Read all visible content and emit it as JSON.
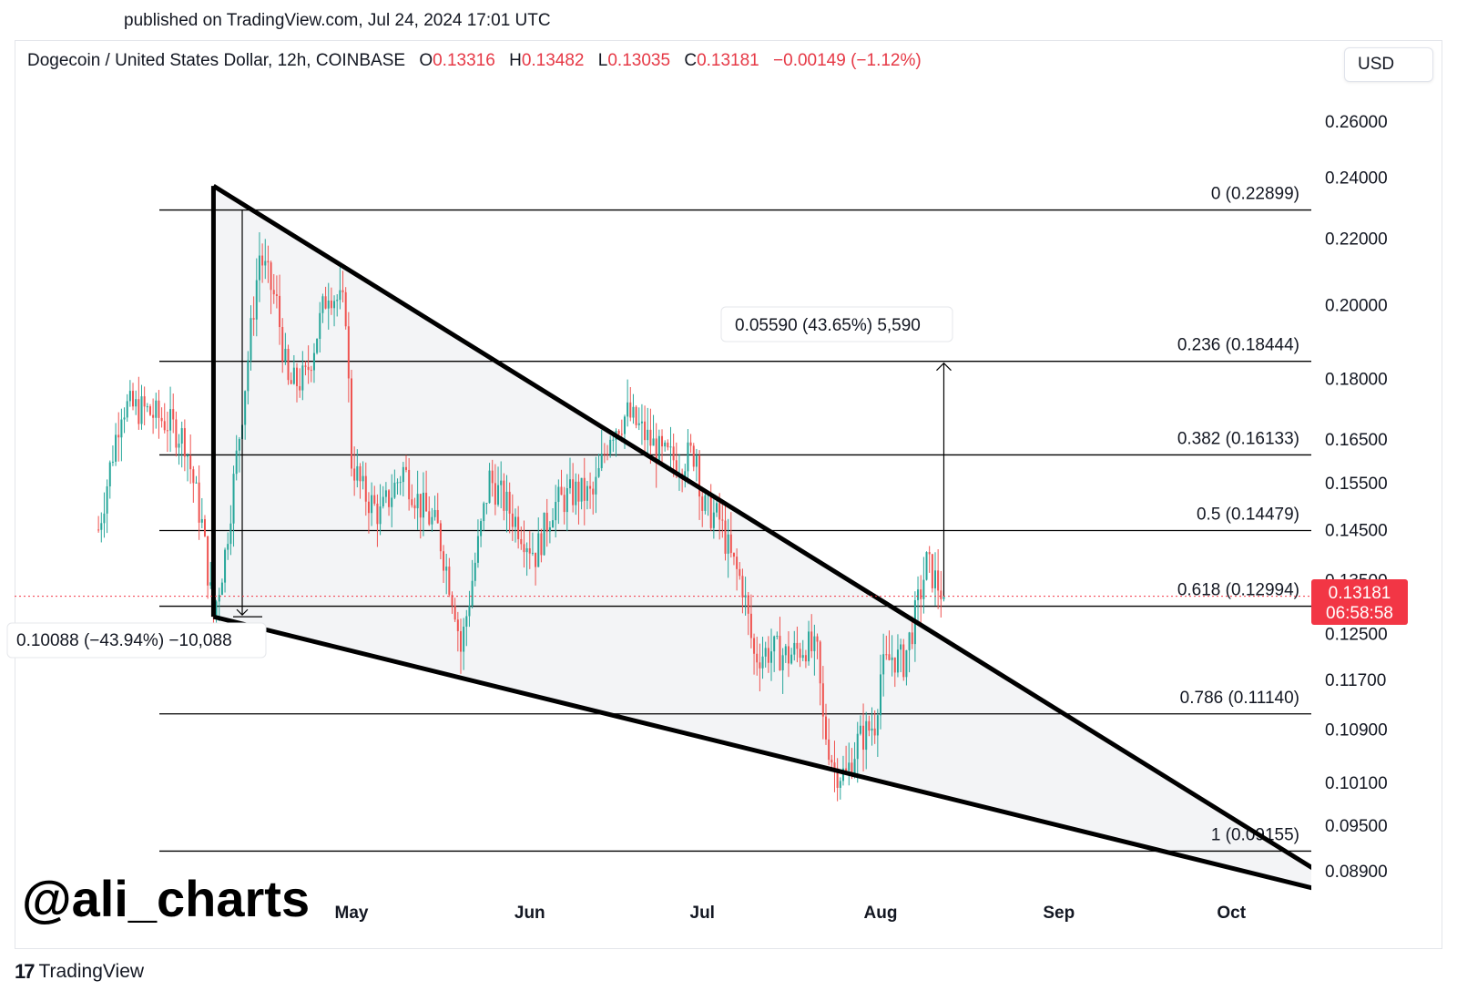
{
  "header": {
    "published": "published on TradingView.com, Jul 24, 2024 17:01 UTC"
  },
  "legend": {
    "symbol": "Dogecoin / United States Dollar, 12h, COINBASE",
    "open_label": "O",
    "open": "0.13316",
    "high_label": "H",
    "high": "0.13482",
    "low_label": "L",
    "low": "0.13035",
    "close_label": "C",
    "close": "0.13181",
    "change": "−0.00149 (−1.12%)"
  },
  "currency_button": "USD",
  "watermark": "@ali_charts",
  "brand": {
    "logo": "17",
    "name": "TradingView"
  },
  "colors": {
    "up": "#26a69a",
    "down": "#ef5350",
    "price_tag": "#f23645",
    "wedge": "#000000",
    "wedge_fill": "#f3f4f6"
  },
  "chart_data": {
    "type": "candlestick",
    "title": "Dogecoin / United States Dollar, 12h, COINBASE",
    "timeframe": "12h",
    "exchange": "COINBASE",
    "y_axis": {
      "scale": "log",
      "range": [
        0.0865,
        0.275
      ],
      "ticks": [
        "0.26000",
        "0.24000",
        "0.22000",
        "0.20000",
        "0.18000",
        "0.16500",
        "0.15500",
        "0.14500",
        "0.13500",
        "0.12500",
        "0.11700",
        "0.10900",
        "0.10100",
        "0.09500",
        "0.08900"
      ]
    },
    "x_axis": {
      "ticks": [
        {
          "label": "May",
          "date": "2024-05-01"
        },
        {
          "label": "Jun",
          "date": "2024-06-01"
        },
        {
          "label": "Jul",
          "date": "2024-07-01"
        },
        {
          "label": "Aug",
          "date": "2024-08-01"
        },
        {
          "label": "Sep",
          "date": "2024-09-01"
        },
        {
          "label": "Oct",
          "date": "2024-10-01"
        }
      ]
    },
    "close_path": [
      [
        "2024-03-18",
        0.145
      ],
      [
        "2024-03-22",
        0.173
      ],
      [
        "2024-03-26",
        0.172
      ],
      [
        "2024-03-30",
        0.169
      ],
      [
        "2024-04-02",
        0.165
      ],
      [
        "2024-04-05",
        0.146
      ],
      [
        "2024-04-07",
        0.128
      ],
      [
        "2024-04-09",
        0.14
      ],
      [
        "2024-04-12",
        0.172
      ],
      [
        "2024-04-15",
        0.215
      ],
      [
        "2024-04-18",
        0.2
      ],
      [
        "2024-04-20",
        0.178
      ],
      [
        "2024-04-23",
        0.18
      ],
      [
        "2024-04-27",
        0.205
      ],
      [
        "2024-04-30",
        0.198
      ],
      [
        "2024-05-01",
        0.16
      ],
      [
        "2024-05-03",
        0.153
      ],
      [
        "2024-05-06",
        0.148
      ],
      [
        "2024-05-10",
        0.158
      ],
      [
        "2024-05-13",
        0.15
      ],
      [
        "2024-05-16",
        0.145
      ],
      [
        "2024-05-19",
        0.13
      ],
      [
        "2024-05-20",
        0.122
      ],
      [
        "2024-05-22",
        0.135
      ],
      [
        "2024-05-25",
        0.156
      ],
      [
        "2024-05-28",
        0.15
      ],
      [
        "2024-05-30",
        0.146
      ],
      [
        "2024-06-02",
        0.14
      ],
      [
        "2024-06-05",
        0.15
      ],
      [
        "2024-06-09",
        0.153
      ],
      [
        "2024-06-12",
        0.152
      ],
      [
        "2024-06-15",
        0.167
      ],
      [
        "2024-06-18",
        0.171
      ],
      [
        "2024-06-21",
        0.166
      ],
      [
        "2024-06-24",
        0.161
      ],
      [
        "2024-06-27",
        0.16
      ],
      [
        "2024-06-30",
        0.162
      ],
      [
        "2024-07-01",
        0.15
      ],
      [
        "2024-07-04",
        0.147
      ],
      [
        "2024-07-06",
        0.139
      ],
      [
        "2024-07-08",
        0.134
      ],
      [
        "2024-07-10",
        0.121
      ],
      [
        "2024-07-13",
        0.122
      ],
      [
        "2024-07-16",
        0.121
      ],
      [
        "2024-07-19",
        0.123
      ],
      [
        "2024-07-21",
        0.121
      ],
      [
        "2024-07-22",
        0.11
      ],
      [
        "2024-07-24",
        0.103
      ],
      [
        "2024-07-26",
        0.102
      ],
      [
        "2024-07-28",
        0.107
      ],
      [
        "2024-07-31",
        0.11
      ],
      [
        "2024-08-01",
        0.118
      ],
      [
        "2024-08-03",
        0.121
      ],
      [
        "2024-08-05",
        0.12
      ],
      [
        "2024-08-07",
        0.128
      ],
      [
        "2024-08-09",
        0.138
      ],
      [
        "2024-08-10",
        0.136
      ],
      [
        "2024-08-12",
        0.13181
      ]
    ],
    "fibonacci": [
      {
        "ratio": "0",
        "price": 0.22899,
        "label": "0 (0.22899)"
      },
      {
        "ratio": "0.236",
        "price": 0.18444,
        "label": "0.236 (0.18444)"
      },
      {
        "ratio": "0.382",
        "price": 0.16133,
        "label": "0.382 (0.16133)"
      },
      {
        "ratio": "0.5",
        "price": 0.14479,
        "label": "0.5 (0.14479)"
      },
      {
        "ratio": "0.618",
        "price": 0.12994,
        "label": "0.618 (0.12994)"
      },
      {
        "ratio": "0.786",
        "price": 0.1114,
        "label": "0.786 (0.11140)"
      },
      {
        "ratio": "1",
        "price": 0.09155,
        "label": "1 (0.09155)"
      }
    ],
    "falling_wedge": {
      "upper_start": {
        "date": "2024-04-07",
        "price": 0.237
      },
      "upper_end": {
        "date": "2024-10-17",
        "price": 0.0885
      },
      "lower_start": {
        "date": "2024-04-07",
        "price": 0.128
      },
      "lower_end": {
        "date": "2024-10-17",
        "price": 0.0865
      }
    },
    "measure_down": {
      "label": "0.10088 (−43.94%) −10,088"
    },
    "measure_up": {
      "label": "0.05590 (43.65%) 5,590"
    },
    "last_price": {
      "value": "0.13181",
      "countdown": "06:58:58"
    }
  }
}
